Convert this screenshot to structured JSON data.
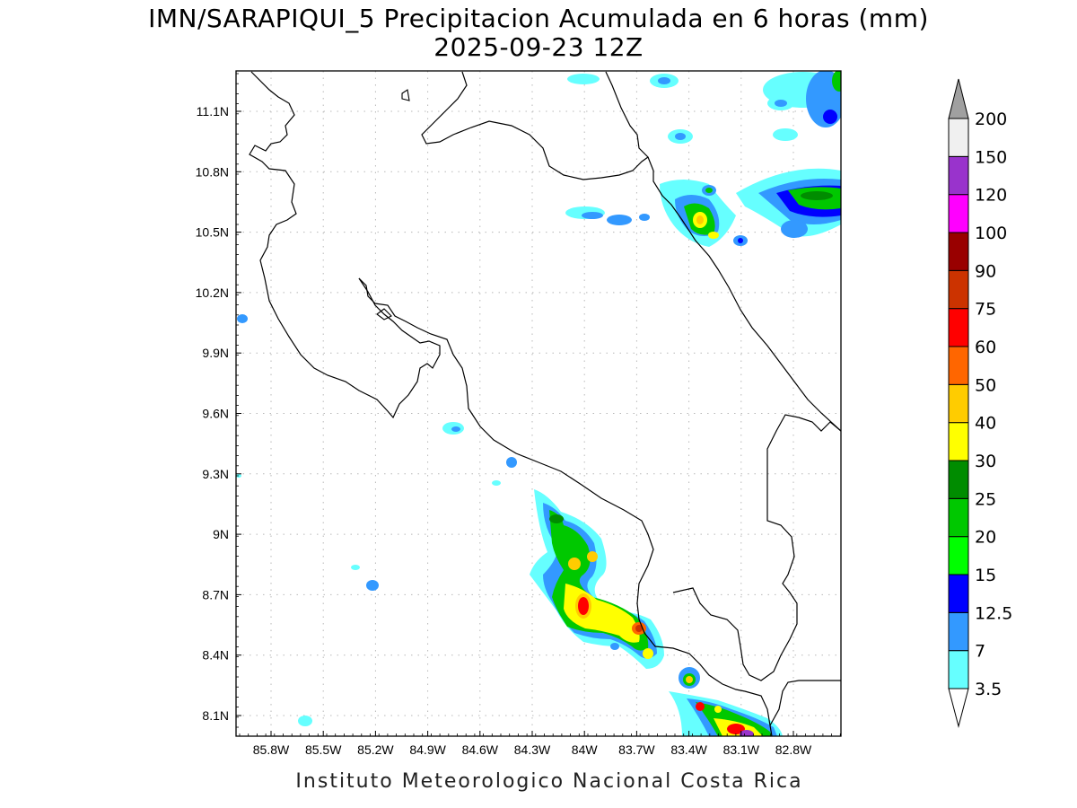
{
  "title": {
    "line1": "IMN/SARAPIQUI_5 Precipitacion Acumulada en 6 horas (mm)",
    "line2": "2025-09-23 12Z"
  },
  "map": {
    "lon_range": [
      -86.0,
      -82.5
    ],
    "lat_range": [
      8.0,
      11.3
    ],
    "lon_ticks": [
      "85.8W",
      "85.5W",
      "85.2W",
      "84.9W",
      "84.6W",
      "84.3W",
      "84W",
      "83.7W",
      "83.4W",
      "83.1W",
      "82.8W"
    ],
    "lat_ticks": [
      "11.1N",
      "10.8N",
      "10.5N",
      "10.2N",
      "9.9N",
      "9.6N",
      "9.3N",
      "9N",
      "8.7N",
      "8.4N",
      "8.1N"
    ],
    "grid": "dotted"
  },
  "colorbar": {
    "levels": [
      "3.5",
      "7",
      "12.5",
      "15",
      "20",
      "25",
      "30",
      "40",
      "50",
      "60",
      "75",
      "90",
      "100",
      "120",
      "150",
      "200"
    ],
    "colors": [
      "#66ffff",
      "#3399ff",
      "#0000ff",
      "#00ff00",
      "#00c800",
      "#008c00",
      "#ffff00",
      "#ffcc00",
      "#ff6600",
      "#ff0000",
      "#cc3300",
      "#990000",
      "#ff00ff",
      "#9933cc",
      "#f0f0f0"
    ],
    "top_arrow_color": "#a0a0a0",
    "bottom_arrow_color": "#ffffff"
  },
  "credit": "Instituto Meteorologico Nacional Costa Rica"
}
